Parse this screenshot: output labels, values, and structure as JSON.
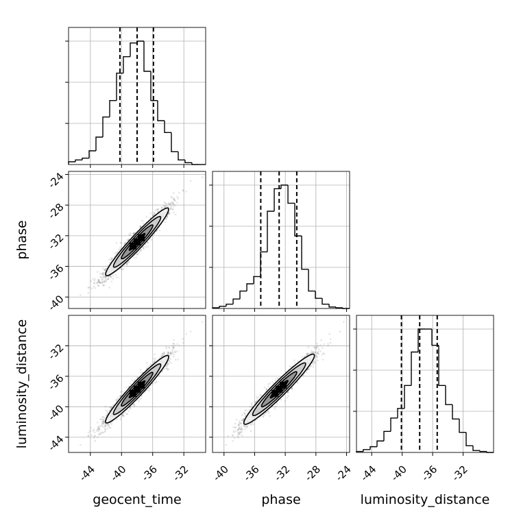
{
  "chart_data": {
    "type": "corner",
    "parameters": [
      "geocent_time",
      "phase",
      "luminosity_distance"
    ],
    "x_labels": [
      "geocent_time",
      "phase",
      "luminosity_distance"
    ],
    "y_labels": [
      "",
      "phase",
      "luminosity_distance"
    ],
    "ranges": {
      "geocent_time": [
        -46.8,
        -29.2
      ],
      "phase": [
        -41.5,
        -23.6
      ],
      "luminosity_distance": [
        -46.0,
        -28.0
      ]
    },
    "ticks": {
      "geocent_time": [
        -44,
        -40,
        -36,
        -32
      ],
      "phase": [
        -40,
        -36,
        -32,
        -28,
        -24
      ],
      "luminosity_distance": [
        -44,
        -40,
        -36,
        -32
      ]
    },
    "quantiles": {
      "geocent_time": [
        -40.2,
        -38.0,
        -35.9
      ],
      "phase": [
        -35.2,
        -32.8,
        -30.5
      ],
      "luminosity_distance": [
        -40.1,
        -37.7,
        -35.4
      ]
    },
    "histograms": {
      "geocent_time": {
        "edges": [
          -46.8,
          -45.92,
          -45.04,
          -44.16,
          -43.28,
          -42.4,
          -41.52,
          -40.64,
          -39.76,
          -38.88,
          -38.0,
          -37.12,
          -36.24,
          -35.36,
          -34.48,
          -33.6,
          -32.72,
          -31.84,
          -30.96,
          -30.08,
          -29.2
        ],
        "counts": [
          3,
          5,
          7,
          15,
          30,
          52,
          70,
          100,
          118,
          133,
          135,
          102,
          70,
          48,
          35,
          14,
          5,
          2,
          0,
          0
        ]
      },
      "phase": {
        "edges": [
          -41.5,
          -40.6,
          -39.71,
          -38.81,
          -37.92,
          -37.02,
          -36.13,
          -35.23,
          -34.34,
          -33.44,
          -32.55,
          -31.65,
          -30.76,
          -29.86,
          -28.97,
          -28.07,
          -27.18,
          -26.28,
          -25.39,
          -24.49,
          -23.6
        ],
        "counts": [
          1,
          3,
          6,
          13,
          24,
          34,
          44,
          78,
          134,
          165,
          170,
          145,
          100,
          54,
          24,
          14,
          6,
          2,
          1,
          0
        ]
      },
      "luminosity_distance": {
        "edges": [
          -46.0,
          -45.1,
          -44.2,
          -43.3,
          -42.4,
          -41.5,
          -40.6,
          -39.7,
          -38.8,
          -37.9,
          -37.0,
          -36.1,
          -35.2,
          -34.3,
          -33.4,
          -32.5,
          -31.6,
          -30.7,
          -29.8,
          -28.9,
          -28.0
        ],
        "counts": [
          1,
          3,
          6,
          12,
          22,
          36,
          46,
          70,
          105,
          129,
          129,
          112,
          70,
          50,
          35,
          21,
          7,
          2,
          1,
          0
        ]
      }
    },
    "samples": {
      "n_points": 2000,
      "means": [
        -38.0,
        -32.8,
        -37.7
      ],
      "sigmas": [
        2.1,
        2.3,
        2.3
      ],
      "correlation": 0.96
    },
    "contour_levels": [
      0.5,
      1.0,
      1.5,
      2.0
    ],
    "grid": true
  }
}
